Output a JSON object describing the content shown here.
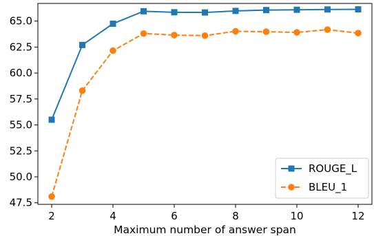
{
  "chart_data": {
    "type": "line",
    "title": "",
    "xlabel": "Maximum number of answer span",
    "ylabel": "",
    "x": [
      2,
      3,
      4,
      5,
      6,
      7,
      8,
      9,
      10,
      11,
      12
    ],
    "series": [
      {
        "name": "ROUGE_L",
        "color": "#1f77b4",
        "line_style": "solid",
        "marker": "square",
        "values": [
          55.5,
          62.7,
          64.75,
          65.95,
          65.85,
          65.83,
          65.98,
          66.06,
          66.09,
          66.12,
          66.13
        ]
      },
      {
        "name": "BLEU_1",
        "color": "#ff7f0e",
        "line_style": "dashed",
        "marker": "circle",
        "values": [
          48.1,
          58.3,
          62.15,
          63.8,
          63.65,
          63.6,
          64.02,
          63.98,
          63.91,
          64.18,
          63.84
        ]
      }
    ],
    "xlim": [
      1.55,
      12.45
    ],
    "ylim": [
      47.35,
      66.7
    ],
    "xticks": [
      "2",
      "4",
      "6",
      "8",
      "10",
      "12"
    ],
    "yticks": [
      "47.5",
      "50.0",
      "52.5",
      "55.0",
      "57.5",
      "60.0",
      "62.5",
      "65.0"
    ],
    "grid": false,
    "legend_position": "lower-right"
  }
}
